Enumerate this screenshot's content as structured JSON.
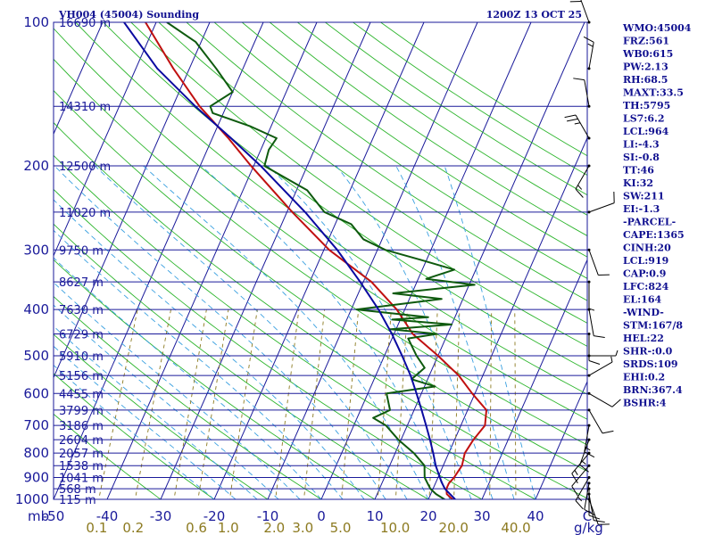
{
  "title_left": "VH004 (45004) Sounding",
  "title_right": "1200Z 13 OCT 25",
  "pressure_unit": "mb",
  "mixing_ratio_unit": "g/kg",
  "colors": {
    "frame": "#1a1a9a",
    "isotherm": "#1a1a9a",
    "dry_adiabat": "#2db52d",
    "moist_adiabat": "#3aa0e0",
    "mixing_ratio": "#8c7a20",
    "temperature": "#c01010",
    "dewpoint": "#0e5a0e",
    "parcel": "#0a0aa0",
    "wind_barb": "#000000",
    "text": "#101090"
  },
  "indices": [
    "WMO:45004",
    "FRZ:561",
    "WB0:615",
    "PW:2.13",
    "RH:68.5",
    "MAXT:33.5",
    "TH:5795",
    "LS7:6.2",
    "LCL:964",
    "LI:-4.3",
    "SI:-0.8",
    "TT:46",
    "KI:32",
    "SW:211",
    "EI:-1.3",
    "-PARCEL-",
    "CAPE:1365",
    "CINH:20",
    "LCL:919",
    "CAP:0.9",
    "LFC:824",
    "EL:164",
    "-WIND-",
    "STM:167/8",
    "HEL:22",
    "SHR-:0.0",
    "SRDS:109",
    "EHI:0.2",
    "BRN:367.4",
    "BSHR:4"
  ],
  "chart_data": {
    "type": "line",
    "title": "VH004 (45004) Sounding",
    "subtitle": "1200Z 13 OCT 25",
    "xlabel": "",
    "ylabel": "",
    "x_unit": "C",
    "y_unit": "mb",
    "y_scale": "log",
    "xlim": [
      -50,
      50
    ],
    "ylim": [
      1000,
      100
    ],
    "x_ticks": [
      -50,
      -40,
      -30,
      -20,
      -10,
      0,
      10,
      20,
      30,
      40
    ],
    "x_tick_labels": [
      "-50",
      "-40",
      "-30",
      "-20",
      "-10",
      "0",
      "10",
      "20",
      "30",
      "40"
    ],
    "x_unit_label": "C",
    "pressure_levels": [
      100,
      200,
      300,
      400,
      500,
      600,
      700,
      800,
      900,
      1000
    ],
    "height_markers": [
      {
        "p": 100,
        "label": "16690 m"
      },
      {
        "p": 150,
        "label": "14310 m"
      },
      {
        "p": 200,
        "label": "12500 m"
      },
      {
        "p": 250,
        "label": "11020 m"
      },
      {
        "p": 300,
        "label": "9750 m"
      },
      {
        "p": 350,
        "label": "8627 m"
      },
      {
        "p": 400,
        "label": "7630 m"
      },
      {
        "p": 450,
        "label": "6729 m"
      },
      {
        "p": 500,
        "label": "5910 m"
      },
      {
        "p": 550,
        "label": "5156 m"
      },
      {
        "p": 600,
        "label": "4455 m"
      },
      {
        "p": 650,
        "label": "3799 m"
      },
      {
        "p": 700,
        "label": "3186 m"
      },
      {
        "p": 750,
        "label": "2604 m"
      },
      {
        "p": 800,
        "label": "2057 m"
      },
      {
        "p": 850,
        "label": "1538 m"
      },
      {
        "p": 900,
        "label": "1041 m"
      },
      {
        "p": 950,
        "label": "568 m"
      },
      {
        "p": 1000,
        "label": "115 m"
      }
    ],
    "mixing_ratio_labels": [
      {
        "w": 0.1,
        "label": "0.1"
      },
      {
        "w": 0.2,
        "label": "0.2"
      },
      {
        "w": 0.6,
        "label": "0.6"
      },
      {
        "w": 1.0,
        "label": "1.0"
      },
      {
        "w": 2.0,
        "label": "2.0"
      },
      {
        "w": 3.0,
        "label": "3.0"
      },
      {
        "w": 5.0,
        "label": "5.0"
      },
      {
        "w": 10.0,
        "label": "10.0"
      },
      {
        "w": 20.0,
        "label": "20.0"
      },
      {
        "w": 40.0,
        "label": "40.0"
      }
    ],
    "series": [
      {
        "key": "temperature",
        "points": [
          [
            1012,
            26.0
          ],
          [
            1000,
            24.5
          ],
          [
            975,
            23.0
          ],
          [
            950,
            22.5
          ],
          [
            925,
            22.5
          ],
          [
            900,
            23.0
          ],
          [
            850,
            23.5
          ],
          [
            800,
            23.0
          ],
          [
            750,
            23.5
          ],
          [
            700,
            24.5
          ],
          [
            650,
            23.5
          ],
          [
            600,
            19.5
          ],
          [
            550,
            15.5
          ],
          [
            500,
            10.0
          ],
          [
            450,
            3.5
          ],
          [
            400,
            -1.5
          ],
          [
            350,
            -8.5
          ],
          [
            300,
            -19.0
          ],
          [
            250,
            -29.0
          ],
          [
            200,
            -40.5
          ],
          [
            175,
            -47.0
          ],
          [
            150,
            -55.0
          ],
          [
            125,
            -63.0
          ],
          [
            100,
            -72.0
          ]
        ]
      },
      {
        "key": "dewpoint",
        "points": [
          [
            1012,
            23.0
          ],
          [
            1000,
            23.0
          ],
          [
            975,
            21.0
          ],
          [
            950,
            19.5
          ],
          [
            925,
            18.5
          ],
          [
            900,
            17.5
          ],
          [
            850,
            16.5
          ],
          [
            800,
            13.5
          ],
          [
            750,
            9.5
          ],
          [
            700,
            6.0
          ],
          [
            675,
            3.0
          ],
          [
            650,
            5.5
          ],
          [
            600,
            3.5
          ],
          [
            580,
            12.0
          ],
          [
            560,
            7.0
          ],
          [
            530,
            8.5
          ],
          [
            500,
            6.0
          ],
          [
            460,
            3.0
          ],
          [
            450,
            8.0
          ],
          [
            440,
            -1.0
          ],
          [
            430,
            10.0
          ],
          [
            420,
            -1.5
          ],
          [
            415,
            5.0
          ],
          [
            400,
            -9.0
          ],
          [
            380,
            6.0
          ],
          [
            370,
            -3.5
          ],
          [
            355,
            11.0
          ],
          [
            345,
            1.5
          ],
          [
            330,
            6.0
          ],
          [
            315,
            -1.0
          ],
          [
            300,
            -8.5
          ],
          [
            285,
            -13.5
          ],
          [
            265,
            -17.0
          ],
          [
            250,
            -23.0
          ],
          [
            225,
            -28.0
          ],
          [
            200,
            -38.0
          ],
          [
            185,
            -38.5
          ],
          [
            175,
            -38.0
          ],
          [
            165,
            -44.0
          ],
          [
            155,
            -52.0
          ],
          [
            150,
            -53.0
          ],
          [
            140,
            -50.0
          ],
          [
            125,
            -55.0
          ],
          [
            110,
            -61.0
          ],
          [
            100,
            -68.0
          ]
        ]
      },
      {
        "key": "parcel",
        "points": [
          [
            1000,
            25.0
          ],
          [
            975,
            23.6
          ],
          [
            950,
            22.2
          ],
          [
            919,
            21.0
          ],
          [
            850,
            18.6
          ],
          [
            800,
            17.1
          ],
          [
            750,
            15.4
          ],
          [
            700,
            13.5
          ],
          [
            650,
            11.4
          ],
          [
            600,
            9.1
          ],
          [
            550,
            6.5
          ],
          [
            500,
            3.3
          ],
          [
            450,
            -0.4
          ],
          [
            400,
            -4.9
          ],
          [
            350,
            -10.6
          ],
          [
            300,
            -17.5
          ],
          [
            250,
            -26.6
          ],
          [
            200,
            -38.7
          ],
          [
            175,
            -46.5
          ],
          [
            150,
            -55.8
          ],
          [
            125,
            -66.0
          ],
          [
            100,
            -76.0
          ]
        ]
      }
    ],
    "wind_barbs": [
      {
        "p": 1000,
        "dir": 160,
        "spd": 10
      },
      {
        "p": 975,
        "dir": 170,
        "spd": 10
      },
      {
        "p": 950,
        "dir": 180,
        "spd": 10
      },
      {
        "p": 925,
        "dir": 190,
        "spd": 10
      },
      {
        "p": 900,
        "dir": 210,
        "spd": 15
      },
      {
        "p": 850,
        "dir": 220,
        "spd": 10
      },
      {
        "p": 800,
        "dir": 220,
        "spd": 15
      },
      {
        "p": 750,
        "dir": 200,
        "spd": 15
      },
      {
        "p": 700,
        "dir": 190,
        "spd": 15
      },
      {
        "p": 650,
        "dir": 150,
        "spd": 10
      },
      {
        "p": 600,
        "dir": 120,
        "spd": 10
      },
      {
        "p": 550,
        "dir": 60,
        "spd": 5
      },
      {
        "p": 500,
        "dir": 90,
        "spd": 5
      },
      {
        "p": 450,
        "dir": 180,
        "spd": 10
      },
      {
        "p": 400,
        "dir": 170,
        "spd": 10
      },
      {
        "p": 350,
        "dir": 180,
        "spd": 5
      },
      {
        "p": 300,
        "dir": 160,
        "spd": 10
      },
      {
        "p": 250,
        "dir": 70,
        "spd": 10
      },
      {
        "p": 200,
        "dir": 210,
        "spd": 15
      },
      {
        "p": 175,
        "dir": 330,
        "spd": 25
      },
      {
        "p": 150,
        "dir": 350,
        "spd": 10
      },
      {
        "p": 125,
        "dir": 10,
        "spd": 15
      },
      {
        "p": 100,
        "dir": 340,
        "spd": 20
      }
    ],
    "grid": true,
    "legend": "none"
  }
}
